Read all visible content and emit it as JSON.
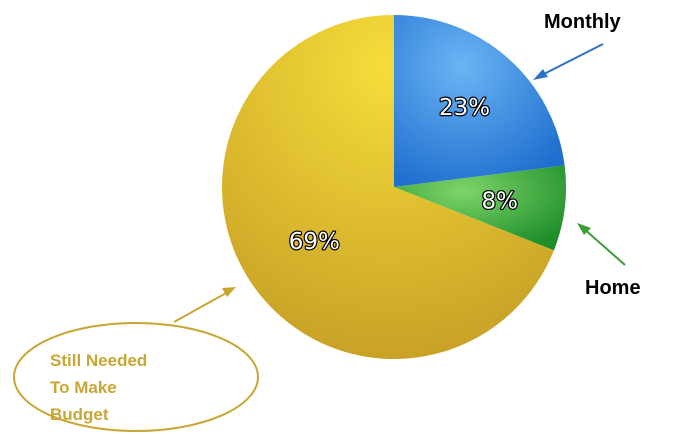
{
  "chart_data": {
    "type": "pie",
    "slices": [
      {
        "label": "Monthly",
        "value": 23,
        "value_label": "23%",
        "color": "#2f7fd6"
      },
      {
        "label": "Home",
        "value": 8,
        "value_label": "8%",
        "color": "#3aaa3e"
      },
      {
        "label": "Still Needed To Make Budget",
        "value": 69,
        "value_label": "69%",
        "color": "#e2bf24"
      }
    ],
    "legend": "callouts with arrows",
    "start": "12 o'clock, clockwise"
  },
  "callouts": {
    "monthly": {
      "text": "Monthly",
      "color": "#2e72c4"
    },
    "home": {
      "text": "Home",
      "color": "#3a9f3a"
    },
    "budget": {
      "lines": [
        "Still Needed",
        "To Make",
        "Budget"
      ],
      "color": "#c8a634"
    }
  }
}
